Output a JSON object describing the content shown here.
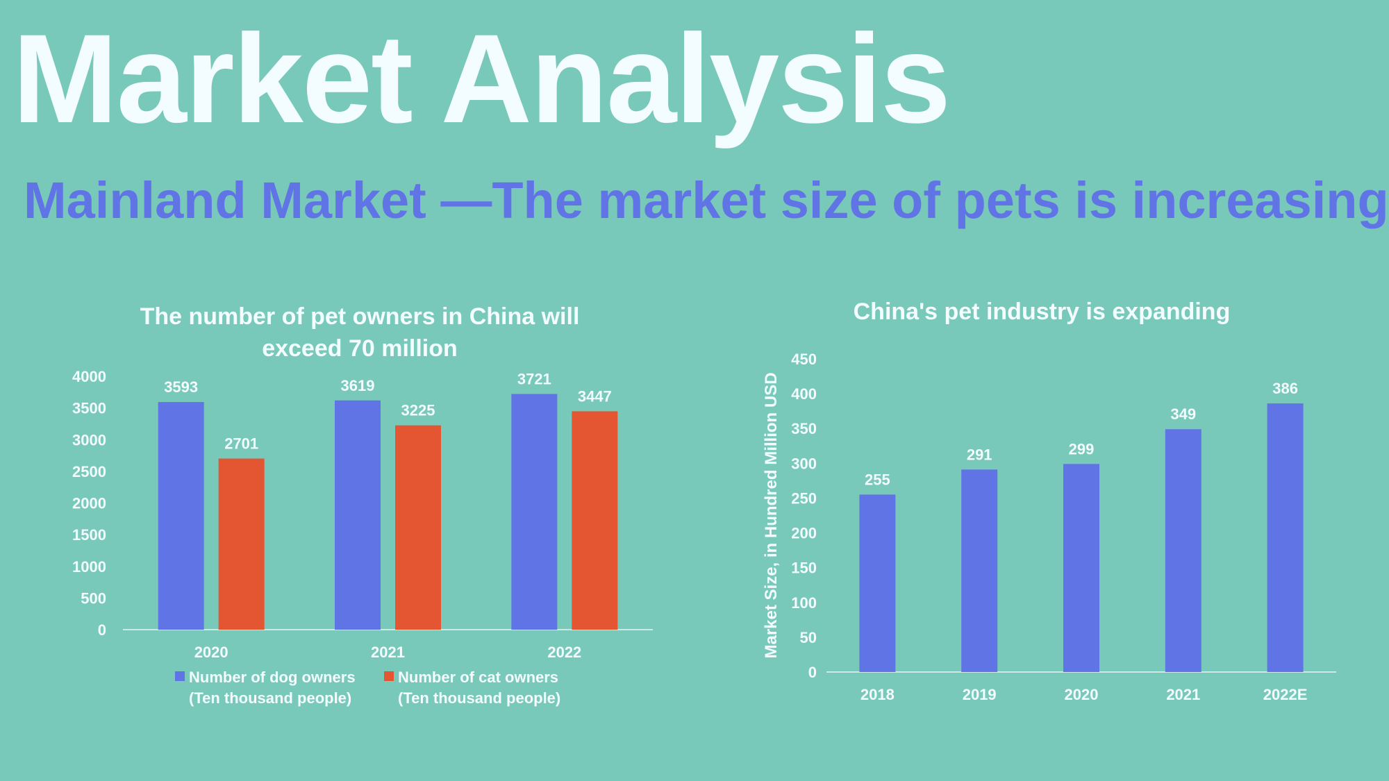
{
  "page": {
    "title": "Market Analysis",
    "subtitle": "Mainland Market —The market size of pets is increasing"
  },
  "colors": {
    "background": "#79C9BA",
    "title": "#F3FCFF",
    "subtitle": "#6174E5",
    "dog_series": "#6174E5",
    "cat_series": "#E45531"
  },
  "chart_data": [
    {
      "type": "bar",
      "title": [
        "The number of pet owners in China will",
        "exceed 70 million"
      ],
      "categories": [
        "2020",
        "2021",
        "2022"
      ],
      "series": [
        {
          "name": [
            "Number of dog owners",
            "(Ten thousand people)"
          ],
          "values": [
            3593,
            3619,
            3721
          ],
          "color": "#6174E5"
        },
        {
          "name": [
            "Number of cat owners",
            "(Ten thousand people)"
          ],
          "values": [
            2701,
            3225,
            3447
          ],
          "color": "#E45531"
        }
      ],
      "ylim": [
        0,
        4000
      ],
      "yticks": [
        0,
        500,
        1000,
        1500,
        2000,
        2500,
        3000,
        3500,
        4000
      ],
      "xlabel": "",
      "ylabel": "",
      "grid": false,
      "legend": "bottom"
    },
    {
      "type": "bar",
      "title": [
        "China's pet industry is expanding"
      ],
      "categories": [
        "2018",
        "2019",
        "2020",
        "2021",
        "2022E"
      ],
      "series": [
        {
          "values": [
            255,
            291,
            299,
            349,
            386
          ],
          "color": "#6174E5"
        }
      ],
      "ylim": [
        0,
        450
      ],
      "yticks": [
        0,
        50,
        100,
        150,
        200,
        250,
        300,
        350,
        400,
        450
      ],
      "xlabel": "",
      "ylabel": "Market Size, in Hundred Million USD",
      "grid": false,
      "legend": "none"
    }
  ]
}
